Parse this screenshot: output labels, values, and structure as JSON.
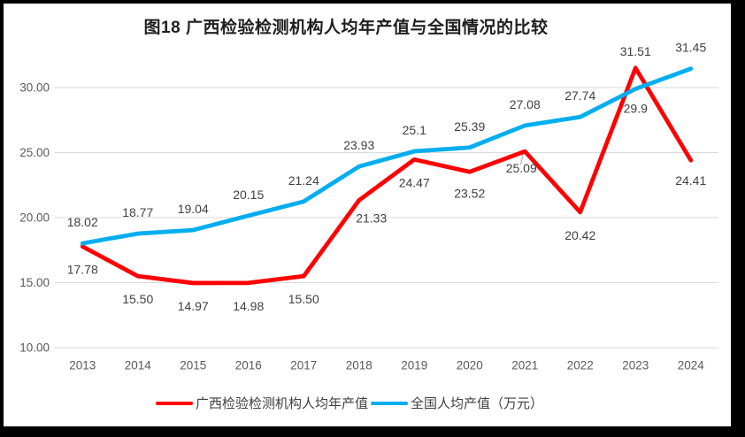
{
  "chart_data": {
    "type": "line",
    "title": "图18 广西检验检测机构人均年产值与全国情况的比较",
    "categories": [
      "2013",
      "2014",
      "2015",
      "2016",
      "2017",
      "2018",
      "2019",
      "2020",
      "2021",
      "2022",
      "2023",
      "2024"
    ],
    "xlabel": "",
    "ylabel": "",
    "ylim": [
      10,
      32.5
    ],
    "y_ticks": [
      "10.00",
      "15.00",
      "20.00",
      "25.00",
      "30.00"
    ],
    "grid": "horizontal-only",
    "grid_color": "#D9D9D9",
    "axis_label_color": "#595959",
    "data_label_color": "#404040",
    "legend_position": "bottom",
    "series": [
      {
        "name": "广西检验检测机构人均年产值",
        "color": "#FF0000",
        "values": [
          17.78,
          15.5,
          14.97,
          14.98,
          15.5,
          21.33,
          24.47,
          23.52,
          25.09,
          20.42,
          31.51,
          24.41
        ],
        "labels": [
          "17.78",
          "15.50",
          "14.97",
          "14.98",
          "15.50",
          "21.33",
          "24.47",
          "23.52",
          "25.09",
          "20.42",
          "31.51",
          "24.41"
        ],
        "label_side": [
          "below",
          "below",
          "below",
          "below",
          "below",
          "below",
          "below",
          "below",
          "below",
          "below",
          "above",
          "below"
        ],
        "label_dx": [
          0,
          0,
          0,
          0,
          0,
          14,
          0,
          0,
          -4,
          0,
          0,
          0
        ],
        "label_dy": [
          0,
          0,
          0,
          0,
          0,
          -6,
          0,
          -2,
          -7,
          0,
          0,
          -3
        ]
      },
      {
        "name": "全国人均产值（万元）",
        "color": "#00AEEF",
        "values": [
          18.02,
          18.77,
          19.04,
          20.15,
          21.24,
          23.93,
          25.1,
          25.39,
          27.08,
          27.74,
          29.9,
          31.45
        ],
        "labels": [
          "18.02",
          "18.77",
          "19.04",
          "20.15",
          "21.24",
          "23.93",
          "25.1",
          "25.39",
          "27.08",
          "27.74",
          "29.9",
          "31.45"
        ],
        "label_side": [
          "above",
          "above",
          "above",
          "above",
          "above",
          "above",
          "above",
          "above",
          "above",
          "above",
          "below",
          "above"
        ],
        "label_dx": [
          0,
          0,
          0,
          0,
          0,
          0,
          0,
          0,
          0,
          0,
          0,
          0
        ],
        "label_dy": [
          0,
          0,
          0,
          0,
          0,
          0,
          0,
          0,
          0,
          0,
          0,
          0
        ]
      }
    ],
    "leader_lines": [
      {
        "series": 0,
        "index": 8
      }
    ]
  }
}
